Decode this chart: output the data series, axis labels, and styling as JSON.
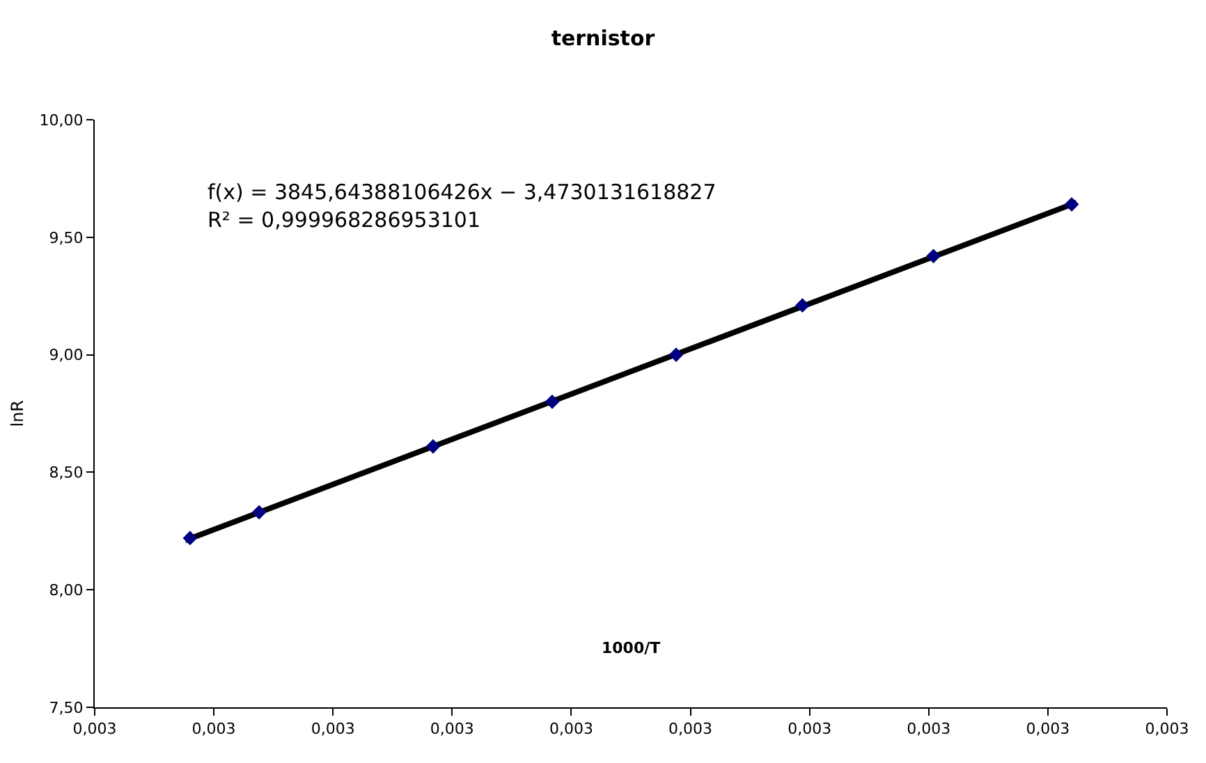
{
  "chart_data": {
    "type": "scatter",
    "title": "ternistor",
    "xlabel": "1000/T",
    "ylabel": "lnR",
    "annotations": [
      "f(x) = 3845,64388106426x − 3,4730131618827",
      "R² = 0,999968286953101"
    ],
    "series": [
      {
        "color": "#000080",
        "x": [
          0.00304,
          0.003069,
          0.003142,
          0.003192,
          0.003244,
          0.003297,
          0.003352,
          0.00341
        ],
        "values": [
          8.22,
          8.33,
          8.61,
          8.8,
          9.0,
          9.21,
          9.42,
          9.64
        ]
      },
      {
        "type": "line",
        "color": "#000000",
        "marker": "none",
        "x": [
          0.003038,
          0.003412
        ],
        "values": [
          8.21,
          9.648
        ]
      }
    ],
    "xlim": [
      0.003,
      0.00345
    ],
    "xticks": [
      {
        "value": 0.003,
        "label": "0,003"
      },
      {
        "value": 0.00305,
        "label": "0,003"
      },
      {
        "value": 0.0031,
        "label": "0,003"
      },
      {
        "value": 0.00315,
        "label": "0,003"
      },
      {
        "value": 0.0032,
        "label": "0,003"
      },
      {
        "value": 0.00325,
        "label": "0,003"
      },
      {
        "value": 0.0033,
        "label": "0,003"
      },
      {
        "value": 0.00335,
        "label": "0,003"
      },
      {
        "value": 0.0034,
        "label": "0,003"
      },
      {
        "value": 0.00345,
        "label": "0,003"
      }
    ],
    "ylim": [
      7.5,
      10
    ],
    "yticks": [
      {
        "value": 7.5,
        "label": "7,50"
      },
      {
        "value": 8,
        "label": "8,00"
      },
      {
        "value": 8.5,
        "label": "8,50"
      },
      {
        "value": 9,
        "label": "9,00"
      },
      {
        "value": 9.5,
        "label": "9,50"
      },
      {
        "value": 10,
        "label": "10,00"
      }
    ],
    "marker": "diamond"
  }
}
